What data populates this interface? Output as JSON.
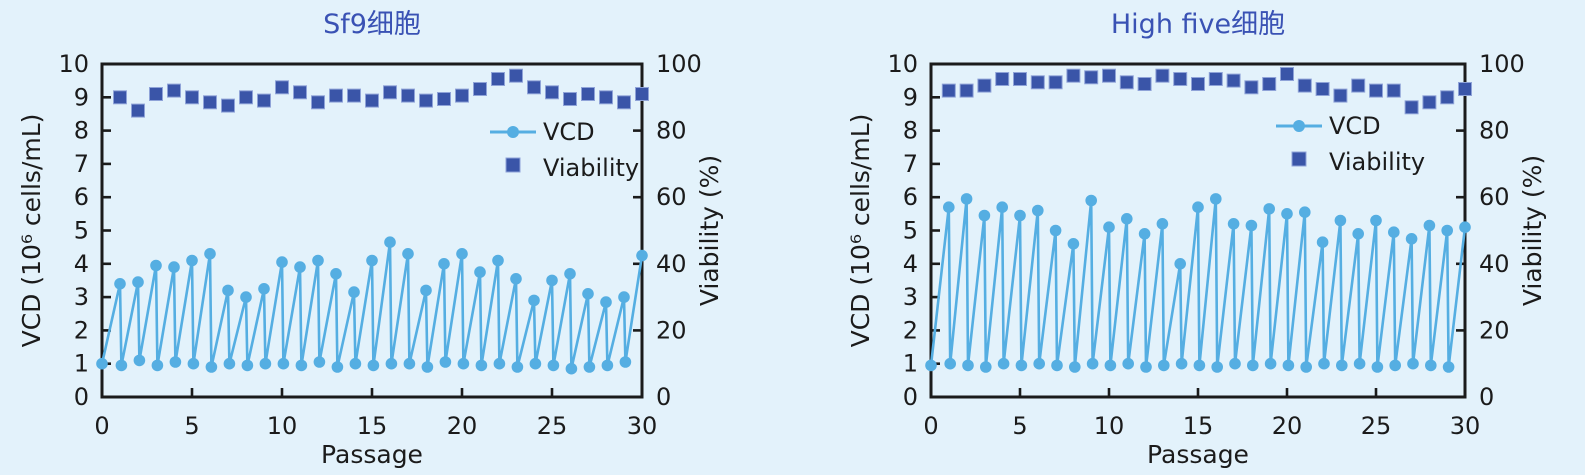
{
  "page": {
    "background": "#E3F2FB",
    "ink": "#1B1B1B"
  },
  "chart_data": {
    "note_type": "two side-by-side dual-axis line/scatter charts, see charts array"
  },
  "charts": [
    {
      "type": "line",
      "title": "Sf9细胞",
      "title_color": "#3A52B4",
      "xlabel": "Passage",
      "ylabel_left": "VCD (10⁶ cells/mL)",
      "ylabel_right": "Viability (%)",
      "xlim": [
        0,
        30
      ],
      "ylim_left": [
        0,
        10
      ],
      "ylim_right": [
        0,
        100
      ],
      "xticks": [
        0,
        5,
        10,
        15,
        20,
        25,
        30
      ],
      "yticks_left": [
        0,
        1,
        2,
        3,
        4,
        5,
        6,
        7,
        8,
        9,
        10
      ],
      "yticks_right": [
        0,
        20,
        40,
        60,
        80,
        100
      ],
      "legend": [
        {
          "label": "VCD",
          "marker": "line-circle",
          "color": "#55AEE2"
        },
        {
          "label": "Viability",
          "marker": "square",
          "color": "#3A55A8"
        }
      ],
      "vcd_series": {
        "name": "VCD",
        "axis": "left",
        "color": "#55AEE2",
        "x": [
          0,
          1,
          1.08,
          2,
          2.08,
          3,
          3.08,
          4,
          4.08,
          5,
          5.08,
          6,
          6.08,
          7,
          7.08,
          8,
          8.08,
          9,
          9.08,
          10,
          10.08,
          11,
          11.08,
          12,
          12.08,
          13,
          13.08,
          14,
          14.08,
          15,
          15.08,
          16,
          16.08,
          17,
          17.08,
          18,
          18.08,
          19,
          19.08,
          20,
          20.08,
          21,
          21.08,
          22,
          22.08,
          23,
          23.08,
          24,
          24.08,
          25,
          25.08,
          26,
          26.08,
          27,
          27.08,
          28,
          28.08,
          29,
          29.08,
          30
        ],
        "y": [
          1.0,
          3.4,
          0.95,
          3.45,
          1.1,
          3.95,
          0.95,
          3.9,
          1.05,
          4.1,
          1.0,
          4.3,
          0.9,
          3.2,
          1.0,
          3.0,
          0.95,
          3.25,
          1.0,
          4.05,
          1.0,
          3.9,
          0.95,
          4.1,
          1.05,
          3.7,
          0.9,
          3.15,
          1.0,
          4.1,
          0.95,
          4.65,
          1.0,
          4.3,
          1.0,
          3.2,
          0.9,
          4.0,
          1.05,
          4.3,
          1.0,
          3.75,
          0.95,
          4.1,
          1.0,
          3.55,
          0.9,
          2.9,
          1.0,
          3.5,
          0.95,
          3.7,
          0.85,
          3.1,
          0.9,
          2.85,
          0.95,
          3.0,
          1.05,
          4.25
        ]
      },
      "viability_series": {
        "name": "Viability",
        "axis": "right",
        "color": "#3A55A8",
        "x": [
          1,
          2,
          3,
          4,
          5,
          6,
          7,
          8,
          9,
          10,
          11,
          12,
          13,
          14,
          15,
          16,
          17,
          18,
          19,
          20,
          21,
          22,
          23,
          24,
          25,
          26,
          27,
          28,
          29,
          30
        ],
        "y": [
          90,
          86,
          91,
          92,
          90,
          88.5,
          87.5,
          90,
          89,
          93,
          91.5,
          88.5,
          90.5,
          90.5,
          89,
          91.5,
          90.5,
          89,
          89.5,
          90.5,
          92.5,
          95.5,
          96.5,
          93,
          91.5,
          89.5,
          91,
          90,
          88.5,
          91
        ]
      }
    },
    {
      "type": "line",
      "title": "High five细胞",
      "title_color": "#3A52B4",
      "xlabel": "Passage",
      "ylabel_left": "VCD (10⁶ cells/mL)",
      "ylabel_right": "Viability (%)",
      "xlim": [
        0,
        30
      ],
      "ylim_left": [
        0,
        10
      ],
      "ylim_right": [
        0,
        100
      ],
      "xticks": [
        0,
        5,
        10,
        15,
        20,
        25,
        30
      ],
      "yticks_left": [
        0,
        1,
        2,
        3,
        4,
        5,
        6,
        7,
        8,
        9,
        10
      ],
      "yticks_right": [
        0,
        20,
        40,
        60,
        80,
        100
      ],
      "legend": [
        {
          "label": "VCD",
          "marker": "line-circle",
          "color": "#55AEE2"
        },
        {
          "label": "Viability",
          "marker": "square",
          "color": "#3A55A8"
        }
      ],
      "vcd_series": {
        "name": "VCD",
        "axis": "left",
        "color": "#55AEE2",
        "x": [
          0,
          1,
          1.08,
          2,
          2.08,
          3,
          3.08,
          4,
          4.08,
          5,
          5.08,
          6,
          6.08,
          7,
          7.08,
          8,
          8.08,
          9,
          9.08,
          10,
          10.08,
          11,
          11.08,
          12,
          12.08,
          13,
          13.08,
          14,
          14.08,
          15,
          15.08,
          16,
          16.08,
          17,
          17.08,
          18,
          18.08,
          19,
          19.08,
          20,
          20.08,
          21,
          21.08,
          22,
          22.08,
          23,
          23.08,
          24,
          24.08,
          25,
          25.08,
          26,
          26.08,
          27,
          27.08,
          28,
          28.08,
          29,
          29.08,
          30
        ],
        "y": [
          0.95,
          5.7,
          1.0,
          5.95,
          0.95,
          5.45,
          0.9,
          5.7,
          1.0,
          5.45,
          0.95,
          5.6,
          1.0,
          5.0,
          0.95,
          4.6,
          0.9,
          5.9,
          1.0,
          5.1,
          0.95,
          5.35,
          1.0,
          4.9,
          0.9,
          5.2,
          0.95,
          4.0,
          1.0,
          5.7,
          0.95,
          5.95,
          0.9,
          5.2,
          1.0,
          5.15,
          0.95,
          5.65,
          1.0,
          5.5,
          0.95,
          5.55,
          0.9,
          4.65,
          1.0,
          5.3,
          0.95,
          4.9,
          1.0,
          5.3,
          0.9,
          4.95,
          0.95,
          4.75,
          1.0,
          5.15,
          0.95,
          5.0,
          0.9,
          5.1
        ]
      },
      "viability_series": {
        "name": "Viability",
        "axis": "right",
        "color": "#3A55A8",
        "x": [
          1,
          2,
          3,
          4,
          5,
          6,
          7,
          8,
          9,
          10,
          11,
          12,
          13,
          14,
          15,
          16,
          17,
          18,
          19,
          20,
          21,
          22,
          23,
          24,
          25,
          26,
          27,
          28,
          29,
          30
        ],
        "y": [
          92,
          92,
          93.5,
          95.5,
          95.5,
          94.5,
          94.5,
          96.5,
          96,
          96.5,
          94.5,
          94,
          96.5,
          95.5,
          94,
          95.5,
          95,
          93,
          94,
          97,
          93.5,
          92.5,
          90.5,
          93.5,
          92,
          92,
          87,
          88.5,
          90,
          92.5
        ]
      }
    }
  ]
}
